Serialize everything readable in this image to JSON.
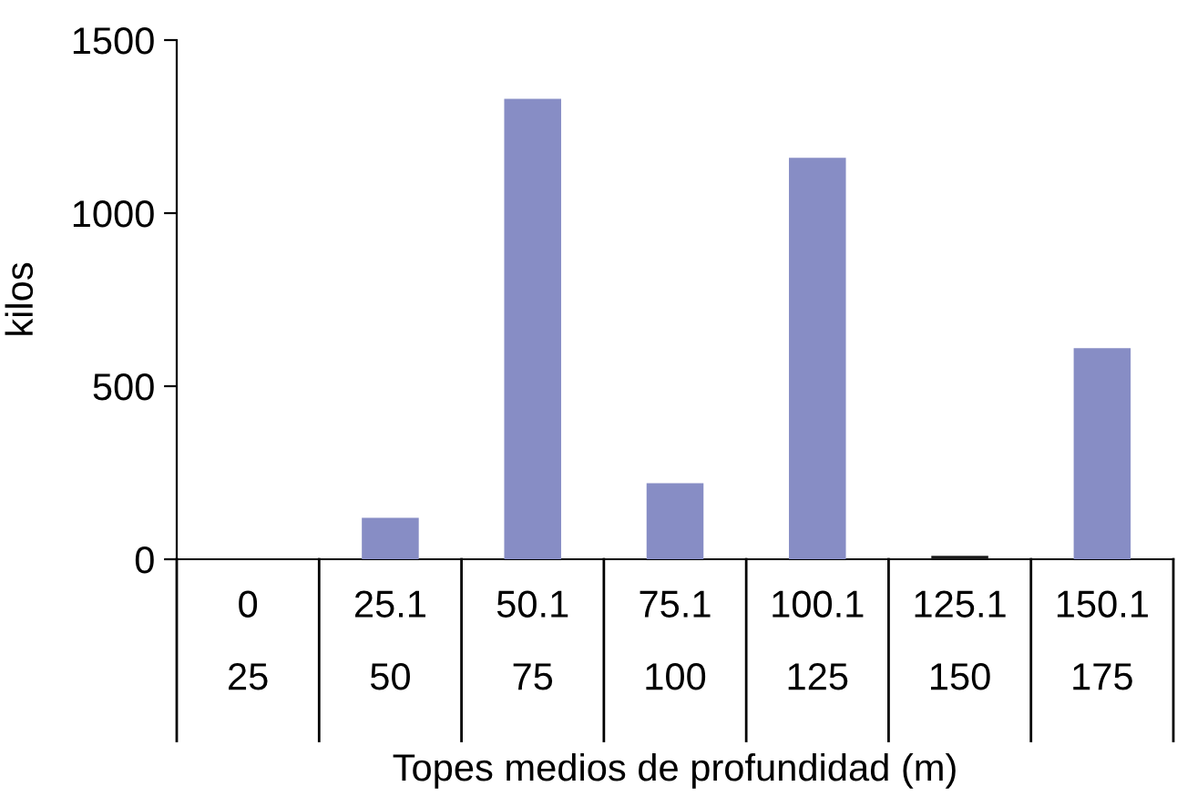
{
  "chart_data": {
    "type": "bar",
    "ylabel": "kilos",
    "xlabel": "Topes medios de profundidad (m)",
    "categories": [
      "0\n25",
      "25.1\n50",
      "50.1\n75",
      "75.1\n100",
      "100.1\n125",
      "125.1\n150",
      "150.1\n175"
    ],
    "values": [
      0,
      120,
      1330,
      220,
      1160,
      10,
      610
    ],
    "colors": [
      "#878dc5",
      "#878dc5",
      "#878dc5",
      "#878dc5",
      "#878dc5",
      "#1a1a1a",
      "#878dc5"
    ],
    "ylim": [
      0,
      1500
    ],
    "yticks": [
      0,
      500,
      1000,
      1500
    ],
    "grid": false,
    "legend": false
  }
}
